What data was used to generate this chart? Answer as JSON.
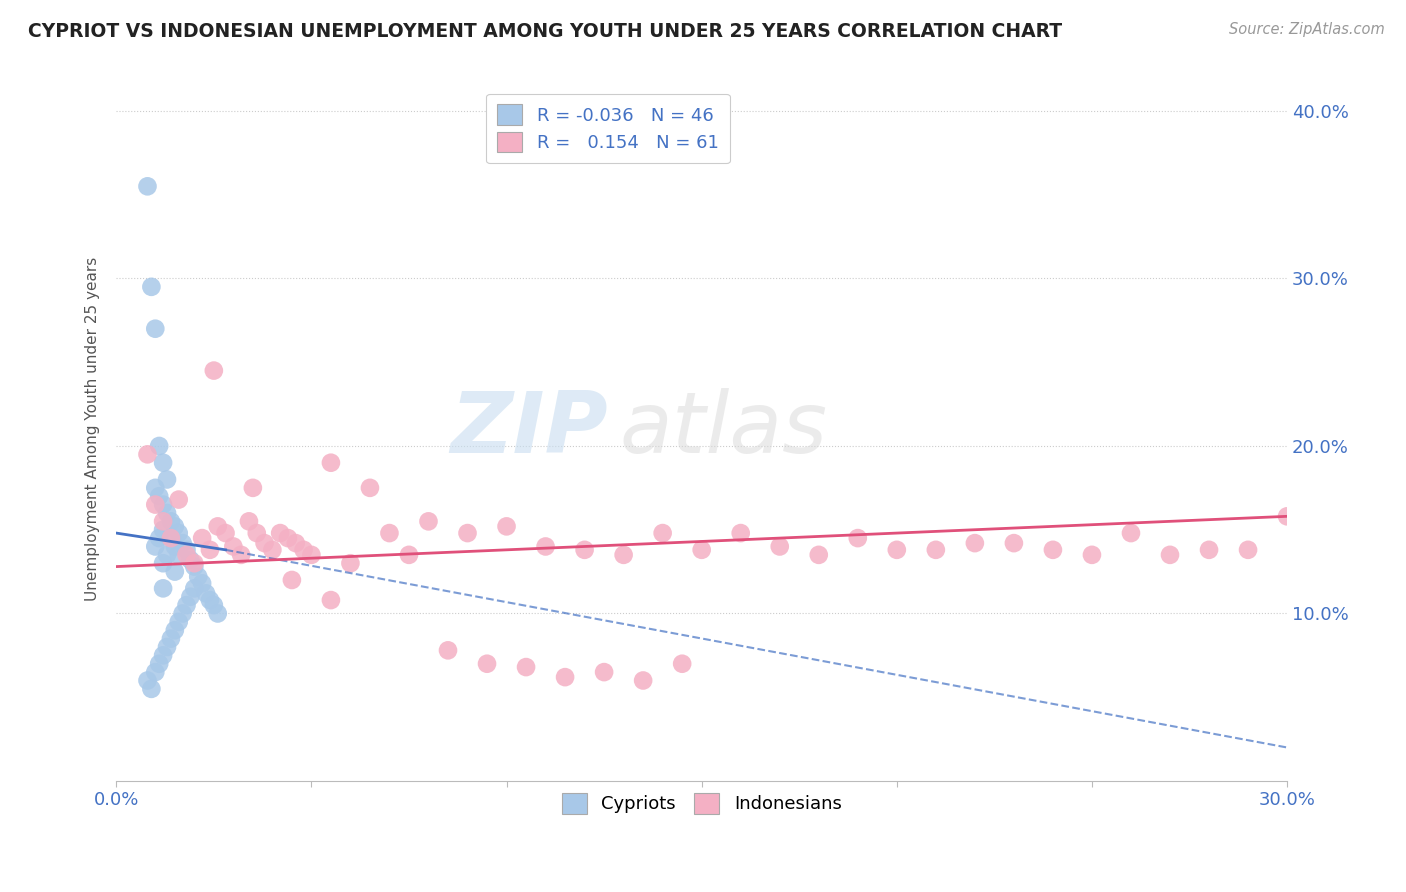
{
  "title": "CYPRIOT VS INDONESIAN UNEMPLOYMENT AMONG YOUTH UNDER 25 YEARS CORRELATION CHART",
  "source": "Source: ZipAtlas.com",
  "ylabel_label": "Unemployment Among Youth under 25 years",
  "xmin": 0.0,
  "xmax": 0.3,
  "ymin": 0.0,
  "ymax": 0.42,
  "color_cyprus": "#a8c8e8",
  "color_indonesia": "#f4b0c4",
  "line_color_cyprus": "#4472c4",
  "line_color_indonesia": "#e0507a",
  "watermark_zip": "ZIP",
  "watermark_atlas": "atlas",
  "cyprus_x": [
    0.008,
    0.008,
    0.009,
    0.009,
    0.01,
    0.01,
    0.01,
    0.01,
    0.011,
    0.011,
    0.011,
    0.011,
    0.012,
    0.012,
    0.012,
    0.012,
    0.012,
    0.012,
    0.013,
    0.013,
    0.013,
    0.013,
    0.014,
    0.014,
    0.014,
    0.015,
    0.015,
    0.015,
    0.015,
    0.016,
    0.016,
    0.016,
    0.017,
    0.017,
    0.018,
    0.018,
    0.019,
    0.019,
    0.02,
    0.02,
    0.021,
    0.022,
    0.023,
    0.024,
    0.025,
    0.026
  ],
  "cyprus_y": [
    0.355,
    0.06,
    0.295,
    0.055,
    0.27,
    0.175,
    0.14,
    0.065,
    0.2,
    0.17,
    0.145,
    0.07,
    0.19,
    0.165,
    0.15,
    0.13,
    0.115,
    0.075,
    0.18,
    0.16,
    0.135,
    0.08,
    0.155,
    0.145,
    0.085,
    0.152,
    0.14,
    0.125,
    0.09,
    0.148,
    0.135,
    0.095,
    0.142,
    0.1,
    0.138,
    0.105,
    0.132,
    0.11,
    0.128,
    0.115,
    0.122,
    0.118,
    0.112,
    0.108,
    0.105,
    0.1
  ],
  "indonesia_x": [
    0.008,
    0.01,
    0.012,
    0.014,
    0.016,
    0.018,
    0.02,
    0.022,
    0.024,
    0.026,
    0.028,
    0.03,
    0.032,
    0.034,
    0.036,
    0.038,
    0.04,
    0.042,
    0.044,
    0.046,
    0.048,
    0.05,
    0.055,
    0.06,
    0.065,
    0.07,
    0.075,
    0.08,
    0.09,
    0.1,
    0.11,
    0.12,
    0.13,
    0.14,
    0.15,
    0.16,
    0.17,
    0.18,
    0.19,
    0.2,
    0.21,
    0.22,
    0.23,
    0.24,
    0.25,
    0.26,
    0.27,
    0.28,
    0.29,
    0.3,
    0.025,
    0.035,
    0.045,
    0.055,
    0.085,
    0.095,
    0.105,
    0.115,
    0.125,
    0.135,
    0.145
  ],
  "indonesia_y": [
    0.195,
    0.165,
    0.155,
    0.145,
    0.168,
    0.135,
    0.13,
    0.145,
    0.138,
    0.152,
    0.148,
    0.14,
    0.135,
    0.155,
    0.148,
    0.142,
    0.138,
    0.148,
    0.145,
    0.142,
    0.138,
    0.135,
    0.19,
    0.13,
    0.175,
    0.148,
    0.135,
    0.155,
    0.148,
    0.152,
    0.14,
    0.138,
    0.135,
    0.148,
    0.138,
    0.148,
    0.14,
    0.135,
    0.145,
    0.138,
    0.138,
    0.142,
    0.142,
    0.138,
    0.135,
    0.148,
    0.135,
    0.138,
    0.138,
    0.158,
    0.245,
    0.175,
    0.12,
    0.108,
    0.078,
    0.07,
    0.068,
    0.062,
    0.065,
    0.06,
    0.07
  ],
  "cy_trendline_x": [
    0.0,
    0.03
  ],
  "cy_trendline_y0": 0.148,
  "cy_trendline_y1": 0.138,
  "cy_trendline_xfull_end": 0.3,
  "cy_trendline_yfull_end": 0.02,
  "id_trendline_x0": 0.0,
  "id_trendline_y0": 0.128,
  "id_trendline_x1": 0.3,
  "id_trendline_y1": 0.158
}
